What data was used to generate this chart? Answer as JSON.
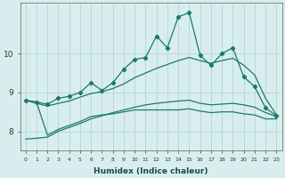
{
  "xlabel": "Humidex (Indice chaleur)",
  "bg_color": "#d8eeee",
  "grid_color": "#b5d5d5",
  "line_color": "#1a7a6a",
  "x": [
    0,
    1,
    2,
    3,
    4,
    5,
    6,
    7,
    8,
    9,
    10,
    11,
    12,
    13,
    14,
    15,
    16,
    17,
    18,
    19,
    20,
    21,
    22,
    23
  ],
  "line1_markers": [
    8.8,
    8.75,
    8.7,
    8.85,
    8.9,
    9.0,
    9.25,
    9.05,
    9.25,
    9.6,
    9.85,
    9.9,
    10.45,
    10.15,
    10.95,
    11.05,
    9.95,
    9.7,
    10.0,
    10.15,
    9.4,
    9.15,
    8.6,
    8.4
  ],
  "line2_smooth_upper": [
    8.8,
    8.72,
    8.65,
    8.72,
    8.78,
    8.88,
    8.97,
    9.02,
    9.1,
    9.22,
    9.38,
    9.5,
    9.62,
    9.72,
    9.82,
    9.9,
    9.82,
    9.75,
    9.82,
    9.88,
    9.7,
    9.45,
    8.85,
    8.42
  ],
  "line2_smooth_lower": [
    7.8,
    7.82,
    7.85,
    8.0,
    8.1,
    8.2,
    8.32,
    8.4,
    8.48,
    8.55,
    8.62,
    8.68,
    8.72,
    8.75,
    8.78,
    8.8,
    8.72,
    8.68,
    8.7,
    8.72,
    8.68,
    8.62,
    8.48,
    8.38
  ],
  "line3_flat": [
    8.8,
    8.75,
    7.9,
    8.05,
    8.15,
    8.25,
    8.38,
    8.42,
    8.45,
    8.5,
    8.55,
    8.55,
    8.55,
    8.55,
    8.55,
    8.58,
    8.52,
    8.48,
    8.5,
    8.5,
    8.45,
    8.42,
    8.32,
    8.32
  ],
  "ylim": [
    7.5,
    11.3
  ],
  "yticks": [
    8,
    9,
    10
  ],
  "xticks": [
    0,
    1,
    2,
    3,
    4,
    5,
    6,
    7,
    8,
    9,
    10,
    11,
    12,
    13,
    14,
    15,
    16,
    17,
    18,
    19,
    20,
    21,
    22,
    23
  ]
}
